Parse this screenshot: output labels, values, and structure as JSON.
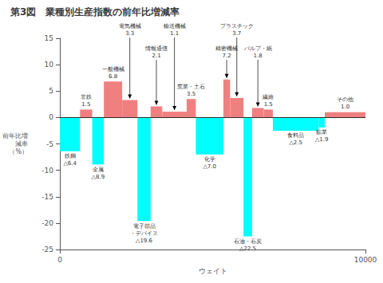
{
  "chart_data": {
    "type": "bar",
    "title": "第3図　業種別生産指数の前年比増減率",
    "xlabel": "ウェイト",
    "ylabel": "前年比増\n減率\n（%）",
    "x": [
      0,
      660,
      1060,
      1440,
      2040,
      2540,
      2970,
      3350,
      4150,
      4450,
      5350,
      5570,
      6010,
      6290,
      6670,
      6970,
      8470,
      8670
    ],
    "widths": [
      660,
      400,
      380,
      600,
      500,
      430,
      380,
      800,
      300,
      900,
      220,
      440,
      280,
      380,
      300,
      1500,
      200,
      1330
    ],
    "values": [
      -6.4,
      1.5,
      -8.9,
      6.8,
      3.3,
      -19.6,
      2.1,
      1.1,
      3.5,
      -7.0,
      7.2,
      3.7,
      -22.5,
      1.8,
      1.5,
      -2.5,
      -1.9,
      1.0
    ],
    "colors": [
      "#00FFFF",
      "#F08080",
      "#00FFFF",
      "#F08080",
      "#F08080",
      "#00FFFF",
      "#F08080",
      "#F08080",
      "#F08080",
      "#00FFFF",
      "#F08080",
      "#F08080",
      "#00FFFF",
      "#F08080",
      "#F08080",
      "#00FFFF",
      "#00FFFF",
      "#F08080"
    ],
    "xlim": [
      0,
      10000
    ],
    "xticks": [
      0,
      10000
    ],
    "ylim": [
      -25,
      15
    ],
    "yticks": [
      -25,
      -20,
      -15,
      -10,
      -5,
      0,
      5,
      10,
      15
    ],
    "grid": false,
    "annotations": [
      {
        "bar": 0,
        "text": "鉄鋼\n△6.4",
        "position": "below"
      },
      {
        "bar": 1,
        "text": "非鉄\n1.5",
        "position": "above"
      },
      {
        "bar": 2,
        "text": "金属\n△8.9",
        "position": "below"
      },
      {
        "bar": 3,
        "text": "一般機械\n6.8",
        "position": "above"
      },
      {
        "bar": 5,
        "text": "電子部品\n・デバイス\n△19.6",
        "position": "below"
      },
      {
        "bar": 8,
        "text": "窯業・土石\n3.5",
        "position": "above"
      },
      {
        "bar": 9,
        "text": "化学\n△7.0",
        "position": "below"
      },
      {
        "bar": 12,
        "text": "石油・石炭\n△22.5",
        "position": "below"
      },
      {
        "bar": 14,
        "text": "繊維\n1.5",
        "position": "above"
      },
      {
        "bar": 15,
        "text": "食料品\n△2.5",
        "position": "below"
      },
      {
        "bar": 16,
        "text": "鉱業\n△1.9",
        "position": "below"
      },
      {
        "bar": 17,
        "text": "その他\n1.0",
        "position": "above"
      },
      {
        "bar": 4,
        "text": "電気機械\n3.3",
        "position": "arrow"
      },
      {
        "bar": 6,
        "text": "情報通信\n2.1",
        "position": "arrow"
      },
      {
        "bar": 7,
        "text": "輸送機械\n1.1",
        "position": "arrow"
      },
      {
        "bar": 10,
        "text": "精密機械\n7.2",
        "position": "arrow"
      },
      {
        "bar": 11,
        "text": "プラスチック\n3.7",
        "position": "arrow"
      },
      {
        "bar": 13,
        "text": "パルプ・紙\n1.8",
        "position": "arrow"
      }
    ]
  }
}
